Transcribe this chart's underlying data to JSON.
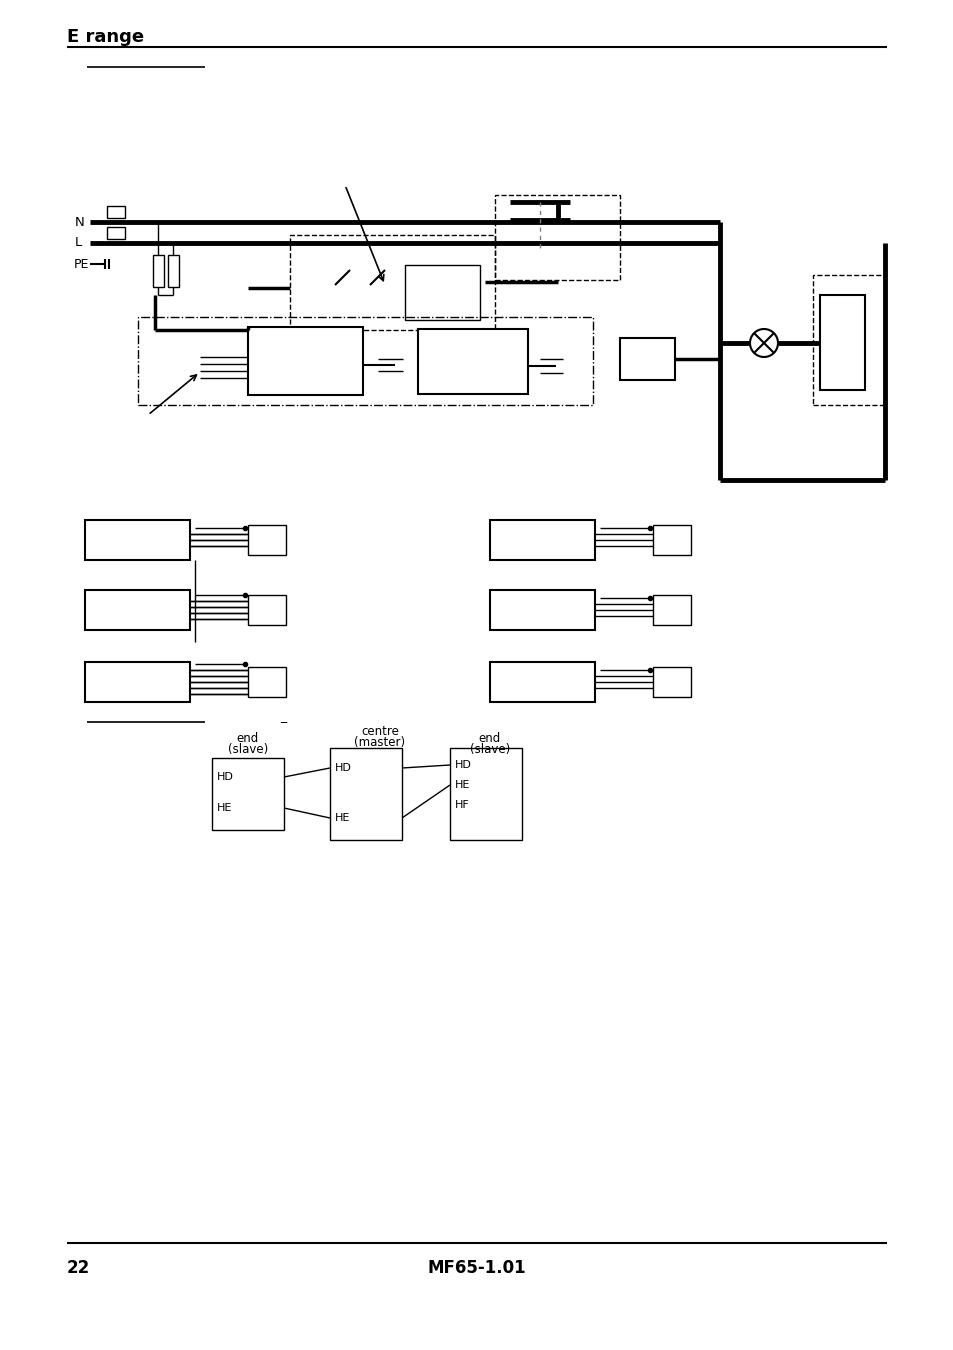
{
  "title": "E range",
  "page_number": "22",
  "doc_ref": "MF65-1.01",
  "background_color": "#ffffff",
  "text_color": "#000000"
}
